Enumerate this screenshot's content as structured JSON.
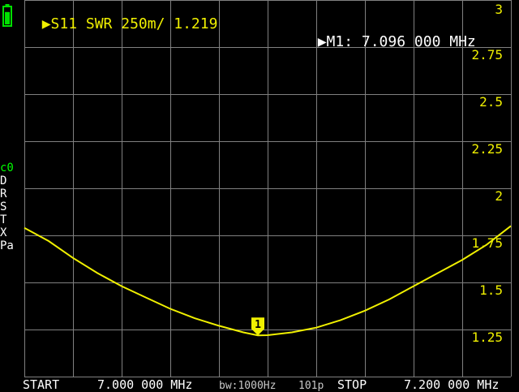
{
  "header": {
    "trace_label": "S11 SWR 250m/ 1.219",
    "marker_readout": "M1: 7.096 000 MHz",
    "marker_pointer_icon": "triangle-right-icon"
  },
  "status_column": {
    "items": [
      "c0",
      "D",
      "R",
      "S",
      "T",
      "X",
      "Pa"
    ],
    "first_item_color": "#00ff00",
    "other_item_color": "#ffffff"
  },
  "battery": {
    "color": "#00e000",
    "level": 0.8
  },
  "footer": {
    "start_label": "START",
    "start_freq": "7.000 000 MHz",
    "bandwidth": "bw:1000Hz",
    "points": "101p",
    "stop_label": "STOP",
    "stop_freq": "7.200 000 MHz"
  },
  "chart_data": {
    "type": "line",
    "x": [
      7.0,
      7.01,
      7.02,
      7.03,
      7.04,
      7.05,
      7.06,
      7.07,
      7.08,
      7.09,
      7.096,
      7.1,
      7.11,
      7.12,
      7.13,
      7.14,
      7.15,
      7.16,
      7.17,
      7.18,
      7.19,
      7.2
    ],
    "series": [
      {
        "values": [
          1.79,
          1.72,
          1.63,
          1.55,
          1.48,
          1.42,
          1.36,
          1.31,
          1.27,
          1.235,
          1.219,
          1.22,
          1.235,
          1.26,
          1.3,
          1.35,
          1.41,
          1.48,
          1.55,
          1.62,
          1.7,
          1.8
        ],
        "color": "#f0f000"
      }
    ],
    "ylim": [
      1.0,
      3.0
    ],
    "xlim": [
      7.0,
      7.2
    ],
    "ytick_labels": [
      "3",
      "2.75",
      "2.5",
      "2.25",
      "2",
      "1.75",
      "1.5",
      "1.25"
    ],
    "ytick_values": [
      3.0,
      2.75,
      2.5,
      2.25,
      2.0,
      1.75,
      1.5,
      1.25
    ],
    "grid": true,
    "grid_color": "#808080",
    "marker": {
      "label": "1",
      "x": 7.096,
      "y": 1.219,
      "color": "#f0f000"
    }
  }
}
